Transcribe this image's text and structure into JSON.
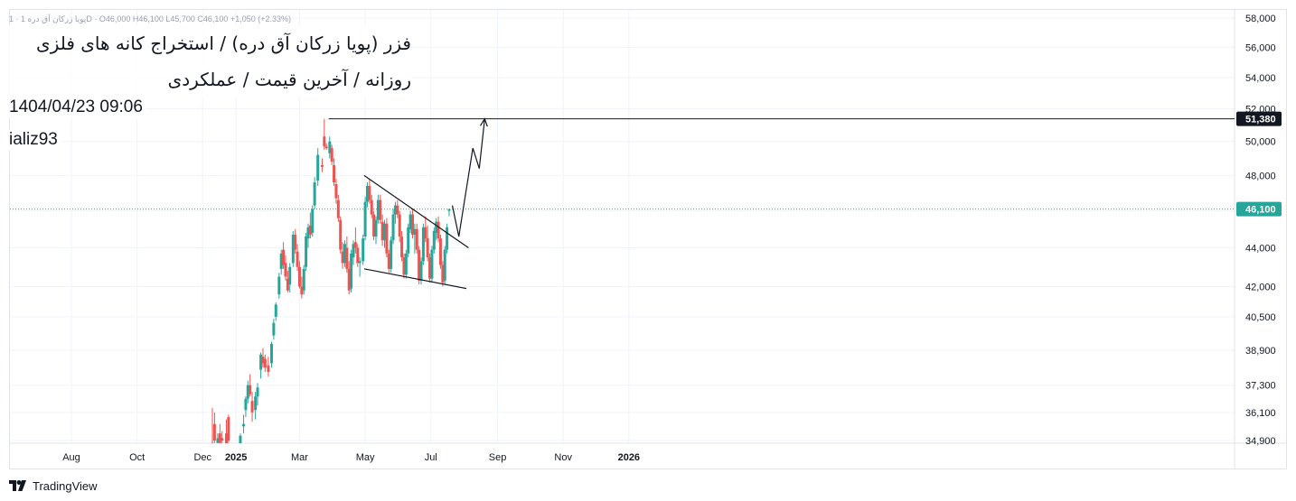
{
  "header": {
    "ohlc_text": "پویا زرکان آق دره 1 · 1D · O46,000 H46,100 L45,700 C46,100 +1,050 (+2.33%)",
    "title_line1": "فزر (پویا زرکان آق دره) / استخراج کانه های فلزی",
    "title_line2": "روزانه / آخرین قیمت / عملکردی",
    "datetime": "1404/04/23 09:06",
    "author": "ializ93"
  },
  "branding": {
    "logo_icon": "tradingview-logo-icon",
    "name": "TradingView"
  },
  "colors": {
    "up": "#26a69a",
    "down": "#ef5350",
    "line": "#131722",
    "last_price": "#26a69a",
    "level_badge": "#131722"
  },
  "chart_data": {
    "type": "candlestick",
    "price_scale": "log",
    "grid": true,
    "y_ticks": [
      34900,
      36100,
      37300,
      38900,
      40500,
      42000,
      44000,
      46000,
      48000,
      50000,
      52000,
      54000,
      56000,
      58000
    ],
    "y_tick_labels": [
      "34,900",
      "36,100",
      "37,300",
      "38,900",
      "40,500",
      "42,000",
      "44,000",
      "46,000",
      "48,000",
      "50,000",
      "52,000",
      "54,000",
      "56,000",
      "58,000"
    ],
    "x_ticks": [
      {
        "label": "Aug",
        "date": "2024-08-01",
        "bold": false
      },
      {
        "label": "Oct",
        "date": "2024-10-01",
        "bold": false
      },
      {
        "label": "Dec",
        "date": "2024-12-01",
        "bold": false
      },
      {
        "label": "2025",
        "date": "2025-01-01",
        "bold": true
      },
      {
        "label": "Mar",
        "date": "2025-03-01",
        "bold": false
      },
      {
        "label": "May",
        "date": "2025-05-01",
        "bold": false
      },
      {
        "label": "Jul",
        "date": "2025-07-01",
        "bold": false
      },
      {
        "label": "Sep",
        "date": "2025-09-01",
        "bold": false
      },
      {
        "label": "Nov",
        "date": "2025-11-01",
        "bold": false
      },
      {
        "label": "2026",
        "date": "2026-01-01",
        "bold": true
      }
    ],
    "last_price": {
      "value": 46100,
      "label": "46,100"
    },
    "horizontal_level": {
      "value": 51380,
      "label": "51,380",
      "from_date": "2025-03-28"
    },
    "candles": [
      {
        "d": "2024-12-10",
        "o": 34800,
        "h": 36300,
        "l": 34600,
        "c": 34700
      },
      {
        "d": "2024-12-12",
        "o": 35600,
        "h": 36100,
        "l": 34800,
        "c": 34900
      },
      {
        "d": "2024-12-15",
        "o": 34800,
        "h": 35200,
        "l": 34600,
        "c": 35000
      },
      {
        "d": "2024-12-17",
        "o": 35200,
        "h": 35600,
        "l": 34700,
        "c": 34800
      },
      {
        "d": "2024-12-19",
        "o": 35000,
        "h": 35300,
        "l": 34700,
        "c": 34900
      },
      {
        "d": "2024-12-23",
        "o": 35200,
        "h": 35800,
        "l": 34600,
        "c": 34700
      },
      {
        "d": "2024-12-25",
        "o": 35900,
        "h": 36000,
        "l": 34800,
        "c": 34900
      },
      {
        "d": "2025-01-05",
        "o": 34600,
        "h": 35200,
        "l": 34500,
        "c": 35100
      },
      {
        "d": "2025-01-08",
        "o": 35500,
        "h": 36000,
        "l": 35200,
        "c": 35600
      },
      {
        "d": "2025-01-10",
        "o": 36200,
        "h": 36800,
        "l": 35900,
        "c": 36700
      },
      {
        "d": "2025-01-12",
        "o": 36700,
        "h": 37500,
        "l": 36500,
        "c": 37300
      },
      {
        "d": "2025-01-14",
        "o": 37300,
        "h": 37800,
        "l": 36800,
        "c": 36900
      },
      {
        "d": "2025-01-16",
        "o": 36600,
        "h": 37000,
        "l": 35700,
        "c": 36100
      },
      {
        "d": "2025-01-19",
        "o": 36200,
        "h": 37000,
        "l": 35800,
        "c": 36800
      },
      {
        "d": "2025-01-21",
        "o": 36800,
        "h": 37400,
        "l": 36400,
        "c": 37200
      },
      {
        "d": "2025-01-24",
        "o": 38000,
        "h": 38800,
        "l": 37600,
        "c": 38700
      },
      {
        "d": "2025-01-26",
        "o": 38600,
        "h": 39000,
        "l": 38100,
        "c": 38300
      },
      {
        "d": "2025-01-28",
        "o": 38500,
        "h": 38700,
        "l": 37900,
        "c": 38100
      },
      {
        "d": "2025-01-31",
        "o": 38200,
        "h": 38600,
        "l": 37700,
        "c": 37900
      },
      {
        "d": "2025-02-03",
        "o": 38300,
        "h": 39300,
        "l": 38100,
        "c": 39200
      },
      {
        "d": "2025-02-05",
        "o": 39600,
        "h": 40400,
        "l": 39400,
        "c": 40200
      },
      {
        "d": "2025-02-07",
        "o": 40500,
        "h": 41200,
        "l": 40300,
        "c": 41100
      },
      {
        "d": "2025-02-10",
        "o": 41600,
        "h": 42700,
        "l": 41400,
        "c": 42500
      },
      {
        "d": "2025-02-12",
        "o": 42900,
        "h": 43900,
        "l": 42600,
        "c": 43700
      },
      {
        "d": "2025-02-14",
        "o": 43900,
        "h": 44300,
        "l": 42900,
        "c": 43100
      },
      {
        "d": "2025-02-16",
        "o": 43200,
        "h": 43600,
        "l": 42300,
        "c": 42500
      },
      {
        "d": "2025-02-18",
        "o": 42400,
        "h": 42800,
        "l": 41700,
        "c": 41800
      },
      {
        "d": "2025-02-20",
        "o": 42100,
        "h": 43200,
        "l": 41700,
        "c": 43000
      },
      {
        "d": "2025-02-23",
        "o": 43200,
        "h": 44900,
        "l": 43000,
        "c": 44700
      },
      {
        "d": "2025-02-25",
        "o": 44700,
        "h": 45000,
        "l": 43700,
        "c": 43900
      },
      {
        "d": "2025-02-27",
        "o": 43800,
        "h": 44200,
        "l": 42800,
        "c": 43000
      },
      {
        "d": "2025-03-01",
        "o": 43000,
        "h": 43300,
        "l": 41900,
        "c": 42000
      },
      {
        "d": "2025-03-03",
        "o": 42000,
        "h": 42500,
        "l": 41400,
        "c": 41600
      },
      {
        "d": "2025-03-05",
        "o": 41800,
        "h": 43100,
        "l": 41600,
        "c": 42900
      },
      {
        "d": "2025-03-07",
        "o": 43000,
        "h": 44800,
        "l": 42800,
        "c": 44600
      },
      {
        "d": "2025-03-09",
        "o": 44500,
        "h": 45300,
        "l": 44000,
        "c": 45100
      },
      {
        "d": "2025-03-11",
        "o": 45200,
        "h": 45900,
        "l": 44500,
        "c": 44700
      },
      {
        "d": "2025-03-13",
        "o": 44800,
        "h": 46300,
        "l": 44600,
        "c": 46100
      },
      {
        "d": "2025-03-15",
        "o": 46300,
        "h": 47900,
        "l": 46100,
        "c": 47600
      },
      {
        "d": "2025-03-18",
        "o": 47700,
        "h": 49600,
        "l": 47400,
        "c": 49200
      },
      {
        "d": "2025-03-22",
        "o": 48600,
        "h": 49000,
        "l": 48200,
        "c": 48500
      },
      {
        "d": "2025-03-24",
        "o": 50300,
        "h": 51380,
        "l": 49500,
        "c": 49700
      },
      {
        "d": "2025-03-26",
        "o": 49700,
        "h": 49900,
        "l": 49500,
        "c": 49600
      },
      {
        "d": "2025-03-29",
        "o": 49300,
        "h": 50300,
        "l": 49000,
        "c": 50000
      },
      {
        "d": "2025-03-31",
        "o": 49600,
        "h": 49800,
        "l": 48600,
        "c": 48800
      },
      {
        "d": "2025-04-02",
        "o": 48600,
        "h": 49000,
        "l": 47400,
        "c": 47600
      },
      {
        "d": "2025-04-04",
        "o": 47500,
        "h": 47800,
        "l": 46400,
        "c": 46700
      },
      {
        "d": "2025-04-06",
        "o": 46600,
        "h": 46900,
        "l": 45400,
        "c": 45600
      },
      {
        "d": "2025-04-08",
        "o": 45500,
        "h": 45700,
        "l": 43700,
        "c": 43900
      },
      {
        "d": "2025-04-10",
        "o": 43800,
        "h": 44300,
        "l": 42900,
        "c": 43200
      },
      {
        "d": "2025-04-12",
        "o": 43200,
        "h": 44400,
        "l": 43000,
        "c": 44200
      },
      {
        "d": "2025-04-14",
        "o": 44000,
        "h": 44600,
        "l": 42700,
        "c": 42900
      },
      {
        "d": "2025-04-16",
        "o": 42900,
        "h": 43300,
        "l": 41600,
        "c": 41800
      },
      {
        "d": "2025-04-18",
        "o": 41900,
        "h": 43900,
        "l": 41700,
        "c": 43700
      },
      {
        "d": "2025-04-20",
        "o": 43500,
        "h": 44400,
        "l": 43100,
        "c": 44200
      },
      {
        "d": "2025-04-22",
        "o": 44300,
        "h": 45100,
        "l": 43700,
        "c": 44000
      },
      {
        "d": "2025-04-24",
        "o": 44000,
        "h": 44200,
        "l": 43000,
        "c": 43200
      },
      {
        "d": "2025-04-26",
        "o": 43200,
        "h": 43500,
        "l": 42500,
        "c": 43300
      },
      {
        "d": "2025-04-29",
        "o": 43300,
        "h": 44700,
        "l": 43100,
        "c": 44500
      },
      {
        "d": "2025-05-01",
        "o": 44600,
        "h": 46800,
        "l": 44400,
        "c": 46500
      },
      {
        "d": "2025-05-03",
        "o": 46500,
        "h": 47600,
        "l": 46200,
        "c": 47400
      },
      {
        "d": "2025-05-05",
        "o": 47400,
        "h": 47800,
        "l": 46400,
        "c": 46600
      },
      {
        "d": "2025-05-07",
        "o": 46600,
        "h": 46900,
        "l": 45600,
        "c": 45800
      },
      {
        "d": "2025-05-09",
        "o": 45800,
        "h": 46000,
        "l": 44400,
        "c": 44600
      },
      {
        "d": "2025-05-11",
        "o": 44600,
        "h": 45700,
        "l": 44200,
        "c": 45500
      },
      {
        "d": "2025-05-13",
        "o": 45500,
        "h": 46900,
        "l": 45300,
        "c": 46600
      },
      {
        "d": "2025-05-15",
        "o": 46600,
        "h": 46900,
        "l": 45300,
        "c": 45500
      },
      {
        "d": "2025-05-17",
        "o": 45400,
        "h": 45800,
        "l": 44100,
        "c": 44400
      },
      {
        "d": "2025-05-19",
        "o": 44400,
        "h": 45500,
        "l": 44000,
        "c": 45300
      },
      {
        "d": "2025-05-21",
        "o": 45300,
        "h": 45600,
        "l": 43500,
        "c": 43700
      },
      {
        "d": "2025-05-23",
        "o": 43700,
        "h": 43900,
        "l": 42700,
        "c": 42900
      },
      {
        "d": "2025-05-25",
        "o": 42900,
        "h": 44600,
        "l": 42700,
        "c": 44400
      },
      {
        "d": "2025-05-27",
        "o": 44400,
        "h": 46100,
        "l": 44200,
        "c": 45800
      },
      {
        "d": "2025-05-29",
        "o": 45800,
        "h": 46500,
        "l": 45300,
        "c": 46300
      },
      {
        "d": "2025-05-31",
        "o": 46300,
        "h": 46600,
        "l": 45600,
        "c": 45800
      },
      {
        "d": "2025-06-02",
        "o": 45800,
        "h": 46000,
        "l": 44300,
        "c": 44600
      },
      {
        "d": "2025-06-04",
        "o": 44600,
        "h": 44900,
        "l": 43300,
        "c": 43500
      },
      {
        "d": "2025-06-06",
        "o": 43500,
        "h": 43700,
        "l": 42400,
        "c": 42600
      },
      {
        "d": "2025-06-08",
        "o": 42600,
        "h": 43900,
        "l": 42400,
        "c": 43700
      },
      {
        "d": "2025-06-10",
        "o": 43700,
        "h": 45300,
        "l": 43500,
        "c": 45100
      },
      {
        "d": "2025-06-12",
        "o": 45000,
        "h": 46000,
        "l": 44800,
        "c": 45800
      },
      {
        "d": "2025-06-14",
        "o": 45800,
        "h": 46100,
        "l": 44500,
        "c": 44700
      },
      {
        "d": "2025-06-16",
        "o": 44700,
        "h": 45300,
        "l": 43700,
        "c": 45000
      },
      {
        "d": "2025-06-18",
        "o": 45000,
        "h": 45300,
        "l": 43700,
        "c": 43900
      },
      {
        "d": "2025-06-20",
        "o": 43900,
        "h": 44100,
        "l": 42100,
        "c": 42300
      },
      {
        "d": "2025-06-22",
        "o": 42300,
        "h": 43500,
        "l": 42100,
        "c": 43300
      },
      {
        "d": "2025-06-24",
        "o": 43300,
        "h": 45300,
        "l": 43100,
        "c": 45100
      },
      {
        "d": "2025-06-26",
        "o": 45100,
        "h": 45700,
        "l": 44300,
        "c": 44500
      },
      {
        "d": "2025-06-28",
        "o": 44500,
        "h": 45200,
        "l": 43300,
        "c": 43500
      },
      {
        "d": "2025-06-30",
        "o": 43500,
        "h": 43700,
        "l": 42200,
        "c": 42400
      },
      {
        "d": "2025-07-02",
        "o": 42400,
        "h": 44100,
        "l": 42200,
        "c": 43900
      },
      {
        "d": "2025-07-04",
        "o": 43900,
        "h": 45100,
        "l": 43700,
        "c": 44900
      },
      {
        "d": "2025-07-06",
        "o": 44800,
        "h": 45600,
        "l": 44400,
        "c": 45400
      },
      {
        "d": "2025-07-08",
        "o": 45400,
        "h": 45700,
        "l": 44300,
        "c": 44500
      },
      {
        "d": "2025-07-10",
        "o": 44500,
        "h": 44700,
        "l": 42900,
        "c": 43100
      },
      {
        "d": "2025-07-12",
        "o": 43100,
        "h": 43300,
        "l": 42000,
        "c": 42200
      },
      {
        "d": "2025-07-14",
        "o": 42300,
        "h": 44100,
        "l": 42100,
        "c": 43900
      },
      {
        "d": "2025-07-16",
        "o": 43900,
        "h": 45300,
        "l": 43700,
        "c": 45100
      },
      {
        "d": "2025-07-18",
        "o": 46000,
        "h": 46100,
        "l": 45700,
        "c": 46100
      }
    ],
    "drawings": [
      {
        "name": "upper-trendline",
        "points": [
          {
            "d": "2025-04-30",
            "v": 48000
          },
          {
            "d": "2025-08-05",
            "v": 44000
          }
        ]
      },
      {
        "name": "lower-trendline",
        "points": [
          {
            "d": "2025-04-30",
            "v": 42900
          },
          {
            "d": "2025-08-03",
            "v": 41900
          }
        ]
      },
      {
        "name": "projection-path",
        "points": [
          {
            "d": "2025-07-21",
            "v": 46300
          },
          {
            "d": "2025-07-27",
            "v": 44600
          },
          {
            "d": "2025-08-09",
            "v": 49600
          },
          {
            "d": "2025-08-15",
            "v": 48400
          },
          {
            "d": "2025-08-20",
            "v": 51380
          }
        ]
      }
    ]
  }
}
